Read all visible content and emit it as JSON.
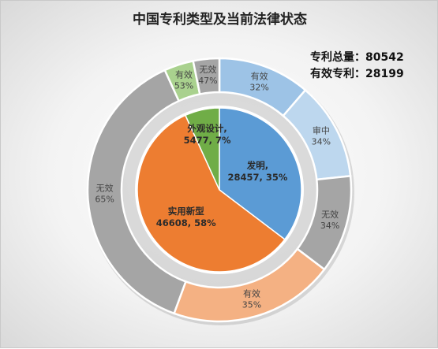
{
  "chart_data": {
    "type": "pie",
    "title": "中国专利类型及当前法律状态",
    "summary": [
      {
        "label": "专利总量：",
        "value": "80542"
      },
      {
        "label": "有效专利：",
        "value": "28199"
      }
    ],
    "inner": {
      "slices": [
        {
          "name": "发明,",
          "value": 28457,
          "value_text": "28457, 35%",
          "percent": 35,
          "color": "#5b9bd5",
          "outer": [
            {
              "name": "有效",
              "percent": 32,
              "percent_text": "32%",
              "color": "#9dc3e6"
            },
            {
              "name": "审中",
              "percent": 34,
              "percent_text": "34%",
              "color": "#bdd7ee"
            },
            {
              "name": "无效",
              "percent": 34,
              "percent_text": "34%",
              "color": "#a5a5a5"
            }
          ]
        },
        {
          "name": "实用新型",
          "value": 46608,
          "value_text": "46608, 58%",
          "percent": 58,
          "color": "#ed7d31",
          "outer": [
            {
              "name": "有效",
              "percent": 35,
              "percent_text": "35%",
              "color": "#f4b183"
            },
            {
              "name": "无效",
              "percent": 65,
              "percent_text": "65%",
              "color": "#a5a5a5"
            }
          ]
        },
        {
          "name": "外观设计,",
          "value": 5477,
          "value_text": "5477, 7%",
          "percent": 7,
          "color": "#70ad47",
          "outer": [
            {
              "name": "有效",
              "percent": 53,
              "percent_text": "53%",
              "color": "#a9d18e"
            },
            {
              "name": "无效",
              "percent": 47,
              "percent_text": "47%",
              "color": "#a5a5a5"
            }
          ]
        }
      ]
    }
  }
}
